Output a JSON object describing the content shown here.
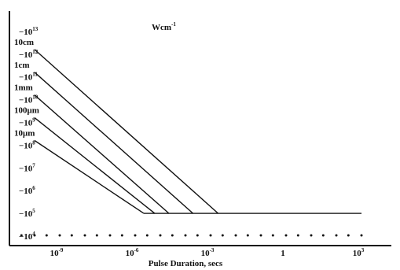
{
  "chart_data": {
    "type": "line",
    "title": "",
    "unit_label": "Wcm",
    "unit_label_exp": "-1",
    "xlabel": "Pulse Duration, secs",
    "ylabel": "",
    "x_scale": "log",
    "y_scale": "log",
    "xlim": [
      1e-11,
      10000.0
    ],
    "ylim": [
      10000.0,
      10000000000000.0
    ],
    "x_tick_labels": [
      {
        "value": 1e-09,
        "mantissa": "10",
        "exp": "-9"
      },
      {
        "value": 1e-06,
        "mantissa": "10",
        "exp": "-6"
      },
      {
        "value": 0.001,
        "mantissa": "10",
        "exp": "-3"
      },
      {
        "value": 1,
        "mantissa": "1",
        "exp": ""
      },
      {
        "value": 1000.0,
        "mantissa": "10",
        "exp": "3"
      }
    ],
    "y_tick_labels": [
      {
        "value": 10000000000000.0,
        "mantissa": "10",
        "exp": "13"
      },
      {
        "value": 1000000000000.0,
        "mantissa": "10",
        "exp": "12"
      },
      {
        "value": 100000000000.0,
        "mantissa": "10",
        "exp": "11"
      },
      {
        "value": 10000000000.0,
        "mantissa": "10",
        "exp": "10"
      },
      {
        "value": 1000000000.0,
        "mantissa": "10",
        "exp": "9"
      },
      {
        "value": 100000000.0,
        "mantissa": "10",
        "exp": "8"
      },
      {
        "value": 10000000.0,
        "mantissa": "10",
        "exp": "7"
      },
      {
        "value": 1000000.0,
        "mantissa": "10",
        "exp": "6"
      },
      {
        "value": 100000.0,
        "mantissa": "10",
        "exp": "5"
      },
      {
        "value": 10000.0,
        "mantissa": "10",
        "exp": "4"
      }
    ],
    "baseline_marks": [
      3e-11,
      1e-10,
      3e-10,
      1e-09,
      3e-09,
      1e-08,
      3e-08,
      1e-07,
      3e-07,
      1e-06,
      3e-06,
      1e-05,
      3e-05,
      0.0001,
      0.0003,
      0.001,
      0.003,
      0.01,
      0.03,
      0.1,
      0.3,
      1,
      3,
      10,
      30,
      100,
      300,
      1000
    ],
    "series": [
      {
        "name": "10cm",
        "points": [
          [
            1e-10,
            1600000000000.0
          ],
          [
            0.002,
            100000.0
          ]
        ]
      },
      {
        "name": "1cm",
        "points": [
          [
            1e-10,
            160000000000.0
          ],
          [
            0.0002,
            100000.0
          ]
        ]
      },
      {
        "name": "1mm",
        "points": [
          [
            1e-10,
            16000000000.0
          ],
          [
            2.2e-05,
            100000.0
          ]
        ]
      },
      {
        "name": "100μm",
        "points": [
          [
            1e-10,
            1600000000.0
          ],
          [
            6e-06,
            100000.0
          ]
        ]
      },
      {
        "name": "10μm",
        "points": [
          [
            1e-10,
            160000000.0
          ],
          [
            2.2e-06,
            100000.0
          ]
        ]
      }
    ],
    "plateau": {
      "value": 100000.0,
      "x_end": 1000.0
    },
    "grid": false,
    "legend": "none"
  }
}
